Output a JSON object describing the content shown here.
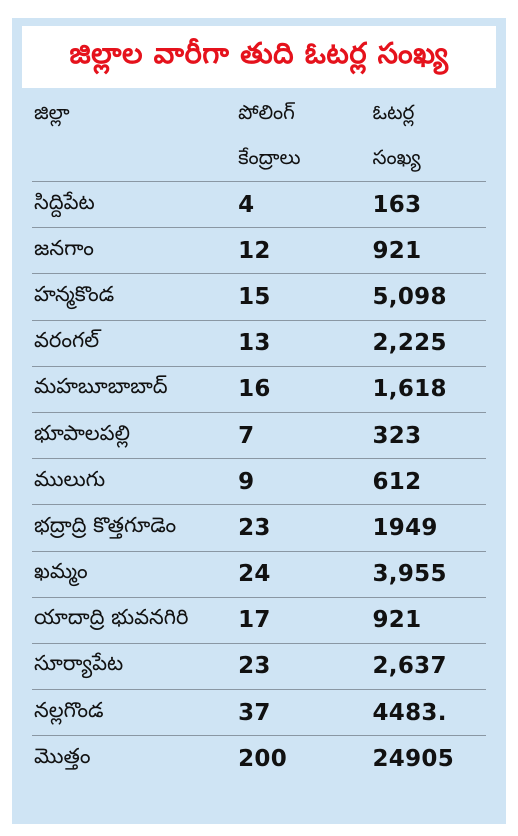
{
  "title": "జిల్లాల వారీగా తుది ఓటర్ల సంఖ్య",
  "header": {
    "col1": "జిల్లా",
    "col2_line1": "పోలింగ్",
    "col2_line2": "కేంద్రాలు",
    "col3_line1": "ఓటర్ల",
    "col3_line2": "సంఖ్య"
  },
  "rows": [
    {
      "district": "సిద్దిపేట",
      "centers": "4",
      "voters": "163"
    },
    {
      "district": "జనగాం",
      "centers": "12",
      "voters": "921"
    },
    {
      "district": "హన్మకొండ",
      "centers": "15",
      "voters": "5,098"
    },
    {
      "district": "వరంగల్",
      "centers": "13",
      "voters": "2,225"
    },
    {
      "district": "మహబూబాబాద్",
      "centers": "16",
      "voters": "1,618"
    },
    {
      "district": "భూపాలపల్లి",
      "centers": "7",
      "voters": "323"
    },
    {
      "district": "ములుగు",
      "centers": "9",
      "voters": "612"
    },
    {
      "district": "భద్రాద్రి కొత్తగూడెం",
      "centers": "23",
      "voters": "1949"
    },
    {
      "district": "ఖమ్మం",
      "centers": "24",
      "voters": "3,955"
    },
    {
      "district": "యాదాద్రి భువనగిరి",
      "centers": "17",
      "voters": "921"
    },
    {
      "district": "సూర్యాపేట",
      "centers": "23",
      "voters": "2,637"
    },
    {
      "district": "నల్లగొండ",
      "centers": "37",
      "voters": "4483."
    }
  ],
  "total": {
    "label": "మొత్తం",
    "centers": "200",
    "voters": "24905"
  },
  "colors": {
    "title": "#e5121c",
    "background": "#cfe4f4"
  }
}
